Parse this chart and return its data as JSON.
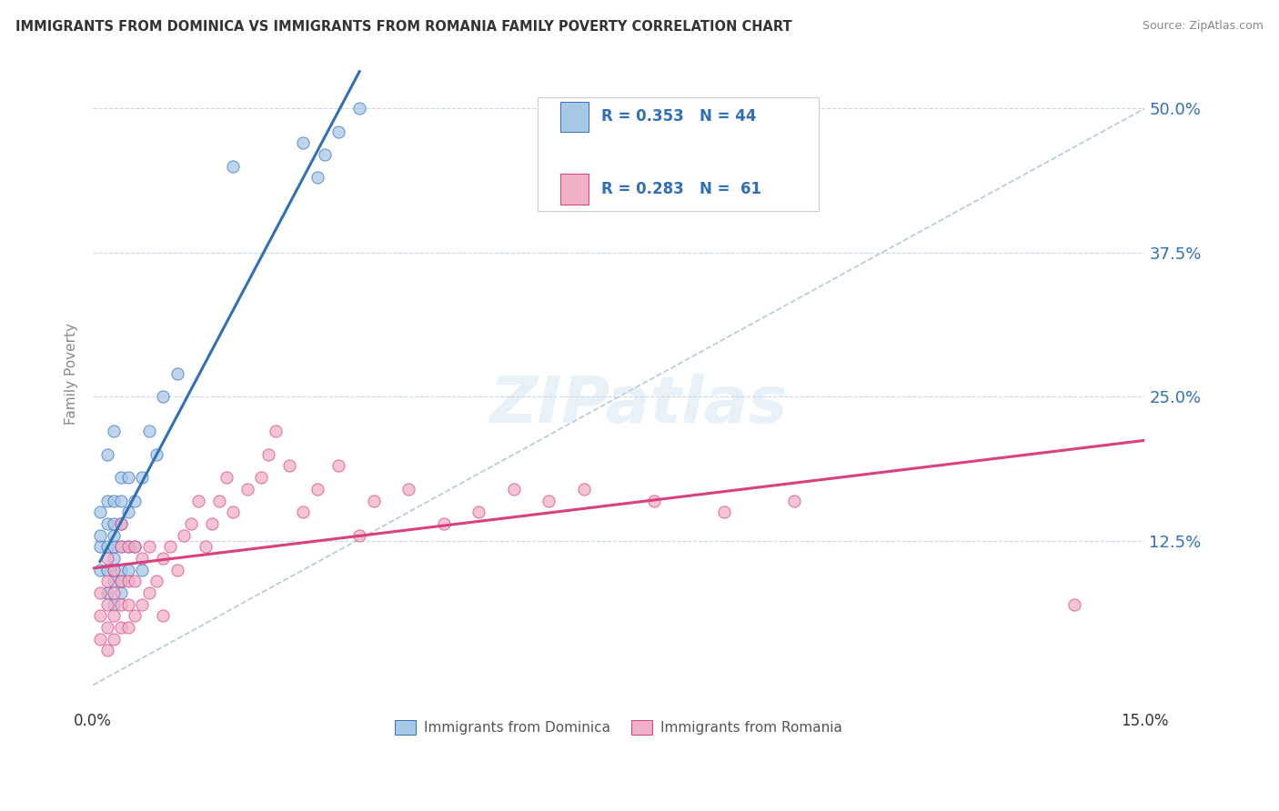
{
  "title": "IMMIGRANTS FROM DOMINICA VS IMMIGRANTS FROM ROMANIA FAMILY POVERTY CORRELATION CHART",
  "source": "Source: ZipAtlas.com",
  "ylabel": "Family Poverty",
  "ytick_labels": [
    "12.5%",
    "25.0%",
    "37.5%",
    "50.0%"
  ],
  "ytick_values": [
    0.125,
    0.25,
    0.375,
    0.5
  ],
  "xlim": [
    0.0,
    0.15
  ],
  "ylim": [
    0.0,
    0.54
  ],
  "legend_dominica": "Immigrants from Dominica",
  "legend_romania": "Immigrants from Romania",
  "R_dominica": "0.353",
  "N_dominica": "44",
  "R_romania": "0.283",
  "N_romania": "61",
  "color_dominica": "#a8c8e8",
  "color_romania": "#f0b0c8",
  "line_color_dominica": "#3070b8",
  "line_color_romania": "#d84080",
  "dashed_line_color": "#a0bcd0",
  "dominica_x": [
    0.001,
    0.001,
    0.001,
    0.001,
    0.002,
    0.002,
    0.002,
    0.002,
    0.002,
    0.002,
    0.003,
    0.003,
    0.003,
    0.003,
    0.003,
    0.003,
    0.003,
    0.003,
    0.003,
    0.004,
    0.004,
    0.004,
    0.004,
    0.004,
    0.004,
    0.004,
    0.005,
    0.005,
    0.005,
    0.005,
    0.006,
    0.006,
    0.007,
    0.007,
    0.008,
    0.009,
    0.01,
    0.012,
    0.02,
    0.03,
    0.032,
    0.033,
    0.035,
    0.038
  ],
  "dominica_y": [
    0.1,
    0.12,
    0.13,
    0.15,
    0.08,
    0.1,
    0.12,
    0.14,
    0.16,
    0.2,
    0.07,
    0.09,
    0.1,
    0.11,
    0.12,
    0.13,
    0.14,
    0.16,
    0.22,
    0.08,
    0.09,
    0.1,
    0.12,
    0.14,
    0.16,
    0.18,
    0.1,
    0.12,
    0.15,
    0.18,
    0.12,
    0.16,
    0.1,
    0.18,
    0.22,
    0.2,
    0.25,
    0.27,
    0.45,
    0.47,
    0.44,
    0.46,
    0.48,
    0.5
  ],
  "romania_x": [
    0.001,
    0.001,
    0.001,
    0.002,
    0.002,
    0.002,
    0.002,
    0.002,
    0.003,
    0.003,
    0.003,
    0.003,
    0.004,
    0.004,
    0.004,
    0.004,
    0.004,
    0.005,
    0.005,
    0.005,
    0.005,
    0.006,
    0.006,
    0.006,
    0.007,
    0.007,
    0.008,
    0.008,
    0.009,
    0.01,
    0.01,
    0.011,
    0.012,
    0.013,
    0.014,
    0.015,
    0.016,
    0.017,
    0.018,
    0.019,
    0.02,
    0.022,
    0.024,
    0.025,
    0.026,
    0.028,
    0.03,
    0.032,
    0.035,
    0.038,
    0.04,
    0.045,
    0.05,
    0.055,
    0.06,
    0.065,
    0.07,
    0.08,
    0.09,
    0.1,
    0.14
  ],
  "romania_y": [
    0.04,
    0.06,
    0.08,
    0.03,
    0.05,
    0.07,
    0.09,
    0.11,
    0.04,
    0.06,
    0.08,
    0.1,
    0.05,
    0.07,
    0.09,
    0.12,
    0.14,
    0.05,
    0.07,
    0.09,
    0.12,
    0.06,
    0.09,
    0.12,
    0.07,
    0.11,
    0.08,
    0.12,
    0.09,
    0.06,
    0.11,
    0.12,
    0.1,
    0.13,
    0.14,
    0.16,
    0.12,
    0.14,
    0.16,
    0.18,
    0.15,
    0.17,
    0.18,
    0.2,
    0.22,
    0.19,
    0.15,
    0.17,
    0.19,
    0.13,
    0.16,
    0.17,
    0.14,
    0.15,
    0.17,
    0.16,
    0.17,
    0.16,
    0.15,
    0.16,
    0.07
  ]
}
